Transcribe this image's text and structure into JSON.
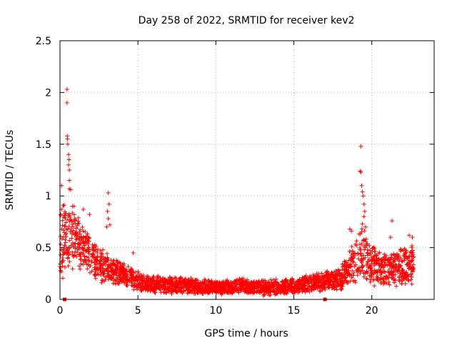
{
  "chart_data": {
    "type": "scatter",
    "title": "Day 258 of 2022, SRMTID for receiver kev2",
    "xlabel": "GPS time / hours",
    "ylabel": "SRMTID / TECUs",
    "xlim": [
      0,
      24
    ],
    "ylim": [
      0,
      2.5
    ],
    "x_ticks": [
      0,
      5,
      10,
      15,
      20
    ],
    "x_tick_labels": [
      "0",
      "5",
      "10",
      "15",
      "20"
    ],
    "y_ticks": [
      0,
      0.5,
      1,
      1.5,
      2,
      2.5
    ],
    "y_tick_labels": [
      "0",
      "0.5",
      "1",
      "1.5",
      "2",
      "2.5"
    ],
    "grid": true,
    "series": [
      {
        "name": "SRMTID",
        "marker": "+",
        "color": "#ff0000",
        "profile": [
          [
            0.0,
            0.5,
            0.35
          ],
          [
            0.25,
            0.55,
            0.4
          ],
          [
            0.5,
            0.62,
            0.35
          ],
          [
            1.0,
            0.6,
            0.3
          ],
          [
            1.5,
            0.52,
            0.25
          ],
          [
            2.0,
            0.42,
            0.22
          ],
          [
            2.5,
            0.32,
            0.18
          ],
          [
            3.0,
            0.3,
            0.16
          ],
          [
            3.5,
            0.27,
            0.15
          ],
          [
            4.0,
            0.25,
            0.13
          ],
          [
            4.5,
            0.21,
            0.11
          ],
          [
            5.0,
            0.17,
            0.1
          ],
          [
            6.0,
            0.15,
            0.09
          ],
          [
            7.0,
            0.14,
            0.09
          ],
          [
            8.0,
            0.14,
            0.09
          ],
          [
            9.0,
            0.12,
            0.08
          ],
          [
            10.0,
            0.11,
            0.07
          ],
          [
            11.0,
            0.12,
            0.08
          ],
          [
            12.0,
            0.13,
            0.08
          ],
          [
            13.0,
            0.11,
            0.08
          ],
          [
            14.0,
            0.12,
            0.08
          ],
          [
            15.0,
            0.13,
            0.08
          ],
          [
            16.0,
            0.15,
            0.09
          ],
          [
            17.0,
            0.18,
            0.1
          ],
          [
            18.0,
            0.2,
            0.12
          ],
          [
            18.5,
            0.3,
            0.18
          ],
          [
            19.0,
            0.4,
            0.25
          ],
          [
            19.5,
            0.45,
            0.3
          ],
          [
            20.0,
            0.32,
            0.22
          ],
          [
            20.5,
            0.3,
            0.18
          ],
          [
            21.0,
            0.3,
            0.2
          ],
          [
            22.0,
            0.32,
            0.2
          ],
          [
            22.7,
            0.33,
            0.2
          ]
        ],
        "outliers": [
          [
            0.45,
            2.03
          ],
          [
            0.45,
            1.9
          ],
          [
            0.47,
            1.58
          ],
          [
            0.48,
            1.55
          ],
          [
            0.5,
            1.5
          ],
          [
            0.55,
            1.4
          ],
          [
            0.58,
            1.35
          ],
          [
            0.55,
            1.3
          ],
          [
            0.6,
            1.25
          ],
          [
            0.6,
            1.15
          ],
          [
            0.6,
            1.07
          ],
          [
            0.68,
            1.06
          ],
          [
            0.1,
            1.1
          ],
          [
            0.1,
            0.87
          ],
          [
            0.05,
            0.82
          ],
          [
            0.9,
            0.9
          ],
          [
            1.5,
            0.87
          ],
          [
            1.9,
            0.82
          ],
          [
            3.1,
            1.03
          ],
          [
            3.15,
            0.92
          ],
          [
            3.05,
            0.85
          ],
          [
            3.1,
            0.78
          ],
          [
            3.2,
            0.72
          ],
          [
            3.0,
            0.7
          ],
          [
            4.7,
            0.45
          ],
          [
            19.3,
            1.48
          ],
          [
            19.25,
            1.24
          ],
          [
            19.3,
            1.23
          ],
          [
            19.35,
            1.1
          ],
          [
            19.4,
            1.04
          ],
          [
            19.45,
            1.0
          ],
          [
            19.5,
            0.92
          ],
          [
            19.55,
            0.85
          ],
          [
            19.5,
            0.8
          ],
          [
            19.4,
            0.73
          ],
          [
            19.6,
            0.7
          ],
          [
            18.6,
            0.68
          ],
          [
            18.7,
            0.66
          ],
          [
            21.3,
            0.76
          ],
          [
            21.2,
            0.6
          ],
          [
            22.4,
            0.62
          ],
          [
            22.6,
            0.6
          ]
        ],
        "zero_markers": [
          [
            0.3,
            0.0
          ],
          [
            17.0,
            0.0
          ]
        ]
      }
    ]
  }
}
